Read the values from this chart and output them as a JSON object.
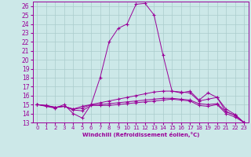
{
  "xlabel": "Windchill (Refroidissement éolien,°C)",
  "bg_color": "#cce8e8",
  "line_color": "#990099",
  "grid_color": "#aacccc",
  "xlim": [
    -0.5,
    23.5
  ],
  "ylim": [
    13,
    26.5
  ],
  "yticks": [
    13,
    14,
    15,
    16,
    17,
    18,
    19,
    20,
    21,
    22,
    23,
    24,
    25,
    26
  ],
  "xticks": [
    0,
    1,
    2,
    3,
    4,
    5,
    6,
    7,
    8,
    9,
    10,
    11,
    12,
    13,
    14,
    15,
    16,
    17,
    18,
    19,
    20,
    21,
    22,
    23
  ],
  "series": [
    {
      "x": [
        0,
        1,
        2,
        3,
        4,
        5,
        6,
        7,
        8,
        9,
        10,
        11,
        12,
        13,
        14,
        15,
        16,
        17,
        18,
        19,
        20,
        21,
        22,
        23
      ],
      "y": [
        15,
        14.8,
        14.6,
        15,
        14,
        13.5,
        15,
        18,
        22,
        23.5,
        24,
        26.2,
        26.3,
        25,
        20.5,
        16.5,
        16.3,
        16.5,
        15.5,
        16.3,
        15.8,
        14.2,
        13.8,
        13
      ]
    },
    {
      "x": [
        0,
        1,
        2,
        3,
        4,
        5,
        6,
        7,
        8,
        9,
        10,
        11,
        12,
        13,
        14,
        15,
        16,
        17,
        18,
        19,
        20,
        21,
        22,
        23
      ],
      "y": [
        15,
        14.9,
        14.7,
        14.8,
        14.5,
        14.8,
        15,
        15.2,
        15.4,
        15.6,
        15.8,
        16.0,
        16.2,
        16.4,
        16.5,
        16.5,
        16.4,
        16.3,
        15.4,
        15.6,
        15.8,
        14.5,
        13.9,
        13
      ]
    },
    {
      "x": [
        0,
        1,
        2,
        3,
        4,
        5,
        6,
        7,
        8,
        9,
        10,
        11,
        12,
        13,
        14,
        15,
        16,
        17,
        18,
        19,
        20,
        21,
        22,
        23
      ],
      "y": [
        15,
        14.9,
        14.7,
        14.8,
        14.5,
        14.6,
        15,
        15.0,
        15.1,
        15.2,
        15.3,
        15.4,
        15.5,
        15.6,
        15.7,
        15.7,
        15.6,
        15.5,
        15.1,
        15.0,
        15.1,
        14.2,
        13.8,
        13
      ]
    },
    {
      "x": [
        0,
        1,
        2,
        3,
        4,
        5,
        6,
        7,
        8,
        9,
        10,
        11,
        12,
        13,
        14,
        15,
        16,
        17,
        18,
        19,
        20,
        21,
        22,
        23
      ],
      "y": [
        15,
        14.85,
        14.65,
        14.8,
        14.4,
        14.3,
        14.9,
        14.9,
        14.9,
        15.0,
        15.1,
        15.2,
        15.3,
        15.4,
        15.5,
        15.6,
        15.5,
        15.4,
        14.9,
        14.8,
        15.0,
        14.0,
        13.6,
        13
      ]
    }
  ]
}
